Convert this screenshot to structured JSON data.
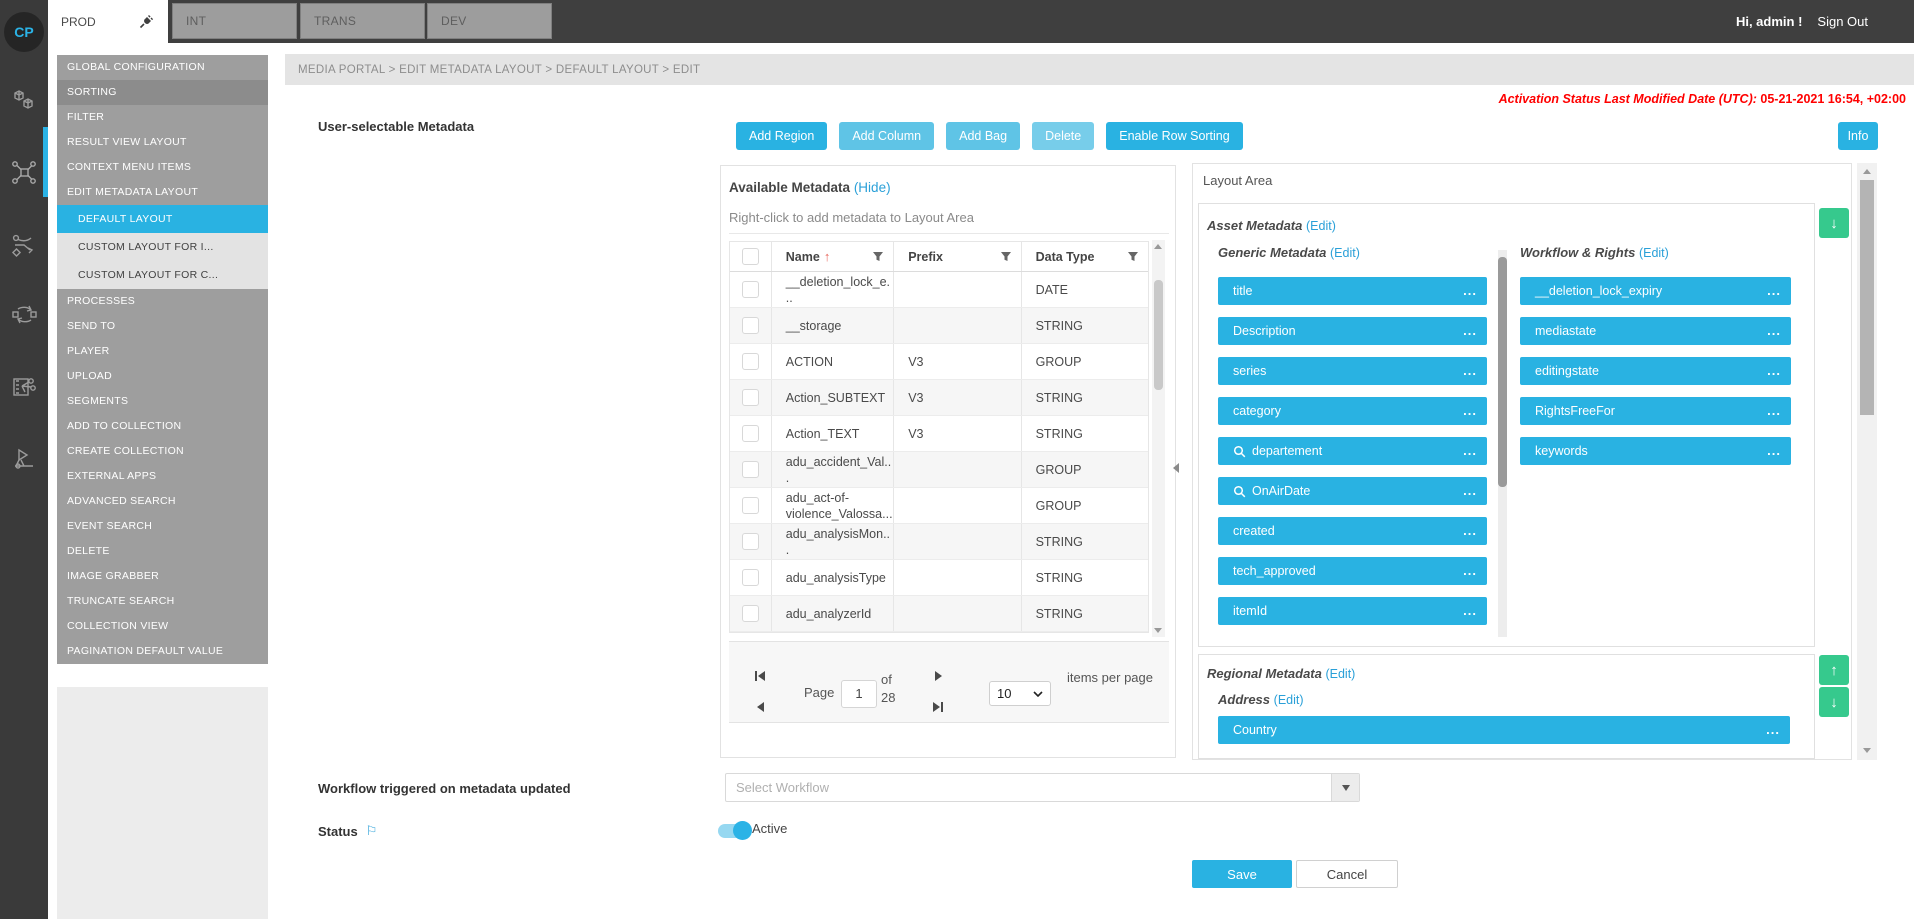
{
  "topbar": {
    "logo": "CP",
    "tabs": [
      {
        "label": "PROD",
        "active": true
      },
      {
        "label": "INT",
        "active": false
      },
      {
        "label": "TRANS",
        "active": false
      },
      {
        "label": "DEV",
        "active": false
      }
    ],
    "greeting": "Hi, admin !",
    "sign_out": "Sign Out"
  },
  "breadcrumb": "MEDIA PORTAL > EDIT METADATA LAYOUT > DEFAULT LAYOUT > EDIT",
  "activation": {
    "label": "Activation Status Last Modified Date (UTC):",
    "value": "05-21-2021 16:54, +02:00"
  },
  "sidebar": {
    "items": [
      {
        "label": "GLOBAL CONFIGURATION",
        "style": "item"
      },
      {
        "label": "SORTING",
        "style": "item dark"
      },
      {
        "label": "FILTER",
        "style": "item"
      },
      {
        "label": "RESULT VIEW LAYOUT",
        "style": "item"
      },
      {
        "label": "CONTEXT MENU ITEMS",
        "style": "item"
      },
      {
        "label": "EDIT METADATA LAYOUT",
        "style": "item"
      },
      {
        "label": "DEFAULT LAYOUT",
        "style": "sub active"
      },
      {
        "label": "CUSTOM LAYOUT FOR I...",
        "style": "sub"
      },
      {
        "label": "CUSTOM LAYOUT FOR C...",
        "style": "sub"
      },
      {
        "label": "PROCESSES",
        "style": "item"
      },
      {
        "label": "SEND TO",
        "style": "item"
      },
      {
        "label": "PLAYER",
        "style": "item"
      },
      {
        "label": "UPLOAD",
        "style": "item"
      },
      {
        "label": "SEGMENTS",
        "style": "item"
      },
      {
        "label": "ADD TO COLLECTION",
        "style": "item"
      },
      {
        "label": "CREATE COLLECTION",
        "style": "item"
      },
      {
        "label": "EXTERNAL APPS",
        "style": "item"
      },
      {
        "label": "ADVANCED SEARCH",
        "style": "item"
      },
      {
        "label": "EVENT SEARCH",
        "style": "item"
      },
      {
        "label": "DELETE",
        "style": "item"
      },
      {
        "label": "IMAGE GRABBER",
        "style": "item"
      },
      {
        "label": "TRUNCATE SEARCH",
        "style": "item"
      },
      {
        "label": "COLLECTION VIEW",
        "style": "item"
      },
      {
        "label": "PAGINATION DEFAULT VALUE",
        "style": "item"
      }
    ]
  },
  "section_label": "User-selectable Metadata",
  "toolbar": {
    "buttons": [
      {
        "label": "Add Region",
        "name": "add-region-button",
        "style": "primary"
      },
      {
        "label": "Add Column",
        "name": "add-column-button",
        "style": "light"
      },
      {
        "label": "Add Bag",
        "name": "add-bag-button",
        "style": "light"
      },
      {
        "label": "Delete",
        "name": "delete-button",
        "style": "lighter"
      },
      {
        "label": "Enable Row Sorting",
        "name": "enable-row-sorting-button",
        "style": "primary"
      }
    ],
    "info_label": "Info"
  },
  "available": {
    "title": "Available Metadata",
    "hide_link": "(Hide)",
    "hint": "Right-click to add metadata to Layout Area",
    "columns": [
      "Name",
      "Prefix",
      "Data Type"
    ],
    "sort_icon": "↑",
    "rows": [
      {
        "name": "__deletion_lock_e...",
        "prefix": "",
        "type": "DATE"
      },
      {
        "name": "__storage",
        "prefix": "",
        "type": "STRING"
      },
      {
        "name": "ACTION",
        "prefix": "V3",
        "type": "GROUP"
      },
      {
        "name": "Action_SUBTEXT",
        "prefix": "V3",
        "type": "STRING"
      },
      {
        "name": "Action_TEXT",
        "prefix": "V3",
        "type": "STRING"
      },
      {
        "name": "adu_accident_Val...",
        "prefix": "",
        "type": "GROUP"
      },
      {
        "name": "adu_act-of-violence_Valossa...",
        "prefix": "",
        "type": "GROUP"
      },
      {
        "name": "adu_analysisMon...",
        "prefix": "",
        "type": "STRING"
      },
      {
        "name": "adu_analysisType",
        "prefix": "",
        "type": "STRING"
      },
      {
        "name": "adu_analyzerId",
        "prefix": "",
        "type": "STRING"
      }
    ],
    "pager": {
      "page_label": "Page",
      "page_value": "1",
      "of_label": "of",
      "total_pages": "28",
      "page_size": "10",
      "items_per_page_label": "items per page"
    }
  },
  "layout_area": {
    "title": "Layout Area",
    "edit_link": "(Edit)",
    "chip_more": "...",
    "asset_label": "Asset Metadata",
    "generic_label": "Generic Metadata",
    "workflow_label": "Workflow & Rights",
    "generic_chips": [
      {
        "label": "title"
      },
      {
        "label": "Description"
      },
      {
        "label": "series"
      },
      {
        "label": "category"
      },
      {
        "label": "departement",
        "search": true
      },
      {
        "label": "OnAirDate",
        "search": true
      },
      {
        "label": "created"
      },
      {
        "label": "tech_approved"
      },
      {
        "label": "itemId"
      }
    ],
    "workflow_chips": [
      {
        "label": "__deletion_lock_expiry"
      },
      {
        "label": "mediastate"
      },
      {
        "label": "editingstate"
      },
      {
        "label": "RightsFreeFor"
      },
      {
        "label": "keywords"
      }
    ],
    "regional_label": "Regional Metadata",
    "address_label": "Address",
    "regional_chips": [
      {
        "label": "Country"
      }
    ]
  },
  "footer": {
    "workflow_label": "Workflow triggered on metadata updated",
    "workflow_placeholder": "Select Workflow",
    "status_label": "Status",
    "status_value": "Active",
    "save_label": "Save",
    "cancel_label": "Cancel"
  },
  "colors": {
    "primary": "#29b2e2",
    "green": "#36c98d",
    "red": "#ff0000",
    "link": "#2aa0d8"
  }
}
